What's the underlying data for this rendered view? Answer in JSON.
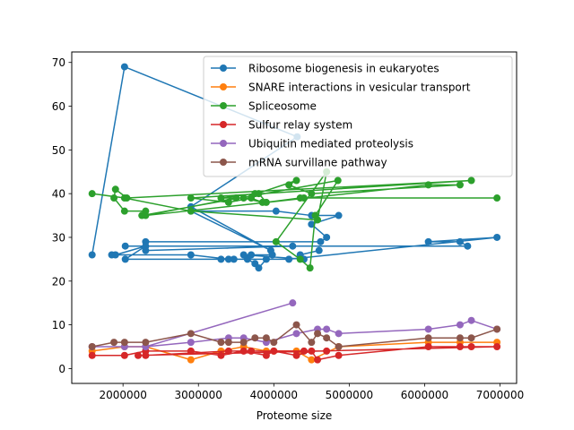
{
  "chart_data": {
    "type": "line",
    "title": "",
    "xlabel": "Proteome size",
    "ylabel": "",
    "xlim": [
      1320000,
      7220000
    ],
    "ylim": [
      -3.4,
      72.4
    ],
    "xticks": [
      2000000,
      3000000,
      4000000,
      5000000,
      6000000,
      7000000
    ],
    "xtick_labels": [
      "2000000",
      "3000000",
      "4000000",
      "5000000",
      "6000000",
      "7000000"
    ],
    "yticks": [
      0,
      10,
      20,
      30,
      40,
      50,
      60,
      70
    ],
    "ytick_labels": [
      "0",
      "10",
      "20",
      "30",
      "40",
      "50",
      "60",
      "70"
    ],
    "grid": false,
    "legend_position": "upper right",
    "series": [
      {
        "name": "Ribosome biogenesis in eukaryotes",
        "color": "#1f77b4",
        "points": [
          [
            1590000,
            26
          ],
          [
            2020000,
            69
          ],
          [
            4310000,
            53
          ],
          [
            2900000,
            37
          ],
          [
            3960000,
            27
          ],
          [
            2900000,
            36
          ],
          [
            4030000,
            36
          ],
          [
            4500000,
            35
          ],
          [
            4860000,
            35
          ],
          [
            4500000,
            33
          ],
          [
            4700000,
            30
          ],
          [
            4620000,
            29
          ],
          [
            2300000,
            29
          ],
          [
            2300000,
            27
          ],
          [
            4250000,
            28
          ],
          [
            2030000,
            28
          ],
          [
            6570000,
            28
          ],
          [
            6470000,
            29
          ],
          [
            6050000,
            29
          ],
          [
            6960000,
            30
          ],
          [
            4200000,
            25
          ],
          [
            2030000,
            25
          ],
          [
            2300000,
            28
          ],
          [
            1900000,
            26
          ],
          [
            1850000,
            26
          ],
          [
            2900000,
            26
          ],
          [
            3400000,
            25
          ],
          [
            3300000,
            25
          ],
          [
            3470000,
            25
          ],
          [
            3650000,
            25
          ],
          [
            3750000,
            24
          ],
          [
            3800000,
            23
          ],
          [
            3900000,
            25
          ],
          [
            3980000,
            26
          ],
          [
            3700000,
            26
          ],
          [
            3600000,
            26
          ],
          [
            4400000,
            25
          ],
          [
            4350000,
            26
          ],
          [
            4600000,
            27
          ]
        ]
      },
      {
        "name": "SNARE interactions in vesicular transport",
        "color": "#ff7f0e",
        "points": [
          [
            1590000,
            4
          ],
          [
            2020000,
            5
          ],
          [
            2300000,
            5
          ],
          [
            2900000,
            2
          ],
          [
            3300000,
            4
          ],
          [
            3600000,
            5
          ],
          [
            3900000,
            4
          ],
          [
            4000000,
            4
          ],
          [
            4300000,
            4
          ],
          [
            4500000,
            2
          ],
          [
            4860000,
            5
          ],
          [
            6050000,
            6
          ],
          [
            6470000,
            6
          ],
          [
            6960000,
            6
          ]
        ]
      },
      {
        "name": "Spliceosome",
        "color": "#2ca02c",
        "points": [
          [
            1590000,
            40
          ],
          [
            2020000,
            39
          ],
          [
            2900000,
            36
          ],
          [
            4580000,
            34
          ],
          [
            4700000,
            45
          ],
          [
            4030000,
            29
          ],
          [
            4350000,
            25
          ],
          [
            4480000,
            23
          ],
          [
            4550000,
            35
          ],
          [
            4850000,
            43
          ],
          [
            2250000,
            35
          ],
          [
            2300000,
            36
          ],
          [
            2020000,
            36
          ],
          [
            1880000,
            39
          ],
          [
            1900000,
            41
          ],
          [
            2050000,
            39
          ],
          [
            6620000,
            43
          ],
          [
            2900000,
            39
          ],
          [
            3400000,
            38
          ],
          [
            3700000,
            39
          ],
          [
            3850000,
            38
          ],
          [
            3600000,
            39
          ],
          [
            4300000,
            43
          ],
          [
            4200000,
            42
          ],
          [
            4500000,
            40
          ],
          [
            6470000,
            42
          ],
          [
            6050000,
            42
          ],
          [
            2300000,
            35
          ],
          [
            3500000,
            39
          ],
          [
            3300000,
            39
          ],
          [
            3750000,
            40
          ],
          [
            3800000,
            40
          ],
          [
            3900000,
            38
          ],
          [
            4350000,
            39
          ],
          [
            4400000,
            39
          ],
          [
            6960000,
            39
          ]
        ]
      },
      {
        "name": "Sulfur relay system",
        "color": "#d62728",
        "points": [
          [
            1590000,
            3
          ],
          [
            2020000,
            3
          ],
          [
            2300000,
            4
          ],
          [
            2900000,
            4
          ],
          [
            3300000,
            3
          ],
          [
            3600000,
            4
          ],
          [
            3900000,
            3
          ],
          [
            4000000,
            4
          ],
          [
            4300000,
            3
          ],
          [
            4500000,
            4
          ],
          [
            4580000,
            2
          ],
          [
            4860000,
            3
          ],
          [
            6050000,
            5
          ],
          [
            6470000,
            5
          ],
          [
            6620000,
            5
          ],
          [
            6960000,
            5
          ],
          [
            2200000,
            3
          ],
          [
            2300000,
            3
          ],
          [
            3400000,
            4
          ],
          [
            3700000,
            4
          ],
          [
            4400000,
            4
          ],
          [
            4700000,
            4
          ]
        ]
      },
      {
        "name": "Ubiquitin mediated proteolysis",
        "color": "#9467bd",
        "points": [
          [
            1590000,
            5
          ],
          [
            2020000,
            5
          ],
          [
            2300000,
            5
          ],
          [
            4250000,
            15
          ],
          [
            2300000,
            5
          ],
          [
            2900000,
            6
          ],
          [
            3400000,
            7
          ],
          [
            3600000,
            7
          ],
          [
            3900000,
            6
          ],
          [
            4300000,
            8
          ],
          [
            4580000,
            9
          ],
          [
            4700000,
            9
          ],
          [
            4860000,
            8
          ],
          [
            6050000,
            9
          ],
          [
            6470000,
            10
          ],
          [
            6620000,
            11
          ],
          [
            6960000,
            9
          ]
        ]
      },
      {
        "name": "mRNA survillane pathway",
        "color": "#8c564b",
        "points": [
          [
            1590000,
            5
          ],
          [
            1880000,
            6
          ],
          [
            2020000,
            6
          ],
          [
            2300000,
            6
          ],
          [
            2900000,
            8
          ],
          [
            3300000,
            6
          ],
          [
            3400000,
            6
          ],
          [
            3600000,
            6
          ],
          [
            3750000,
            7
          ],
          [
            3900000,
            7
          ],
          [
            4000000,
            6
          ],
          [
            4300000,
            10
          ],
          [
            4500000,
            6
          ],
          [
            4580000,
            8
          ],
          [
            4700000,
            7
          ],
          [
            4860000,
            5
          ],
          [
            6050000,
            7
          ],
          [
            6470000,
            7
          ],
          [
            6620000,
            7
          ],
          [
            6960000,
            9
          ]
        ]
      }
    ]
  }
}
